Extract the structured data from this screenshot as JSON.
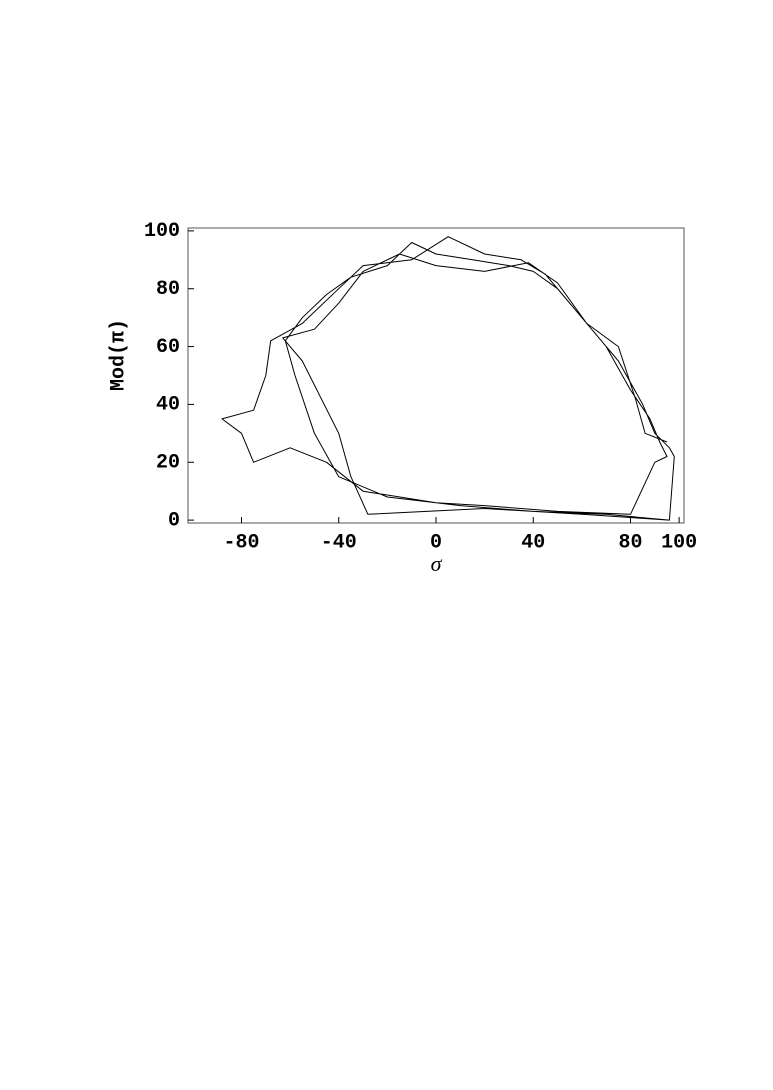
{
  "chart_data": {
    "type": "line",
    "xlabel": "σ",
    "ylabel": "Mod(π)",
    "xlim": [
      -102,
      102
    ],
    "ylim": [
      -1,
      101
    ],
    "xticks": [
      -80,
      -40,
      0,
      40,
      80,
      100
    ],
    "yticks": [
      0,
      20,
      40,
      60,
      80,
      100
    ],
    "color": "#000000",
    "x": [
      96,
      70,
      40,
      10,
      -20,
      -40,
      -50,
      -58,
      -62,
      -55,
      -45,
      -35,
      -20,
      -10,
      0,
      15,
      30,
      40,
      50,
      60,
      70,
      80,
      88,
      92,
      95,
      90,
      80,
      50,
      20,
      0,
      -30,
      -45,
      -60,
      -75,
      -80,
      -88,
      -75,
      -70,
      -68,
      -55,
      -40,
      -30,
      -10,
      5,
      20,
      35,
      45,
      55,
      65,
      75,
      85,
      90,
      96,
      98,
      96,
      60,
      20,
      -28,
      -35,
      -40,
      -55,
      -63,
      -50,
      -40,
      -30,
      -15,
      0,
      20,
      38,
      50,
      62,
      75,
      82,
      86,
      95
    ],
    "values": [
      0,
      2,
      3,
      5,
      8,
      15,
      30,
      50,
      62,
      70,
      78,
      84,
      88,
      96,
      92,
      90,
      88,
      86,
      80,
      70,
      60,
      45,
      35,
      27,
      22,
      20,
      2,
      3,
      5,
      6,
      10,
      20,
      25,
      20,
      30,
      35,
      38,
      50,
      62,
      68,
      80,
      88,
      90,
      98,
      92,
      90,
      85,
      75,
      65,
      55,
      40,
      30,
      25,
      22,
      0,
      2,
      4,
      2,
      15,
      30,
      55,
      63,
      66,
      75,
      86,
      92,
      88,
      86,
      89,
      82,
      68,
      60,
      42,
      30,
      27
    ]
  }
}
